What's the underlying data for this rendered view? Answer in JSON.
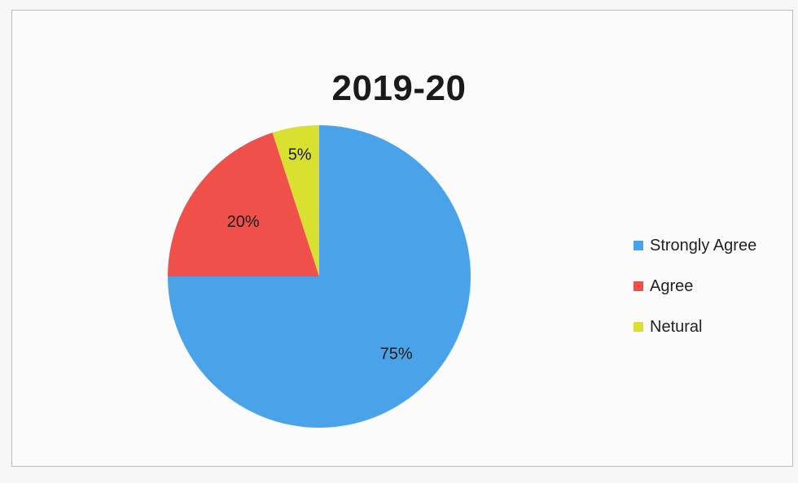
{
  "chart_data": {
    "type": "pie",
    "title": "2019-20",
    "categories": [
      "Strongly Agree",
      "Agree",
      "Netural"
    ],
    "values": [
      75,
      20,
      5
    ],
    "data_labels": [
      "75%",
      "20%",
      "5%"
    ],
    "colors": [
      "#4aa3e8",
      "#f0504a",
      "#d9e030"
    ],
    "legend_placement": "right"
  }
}
